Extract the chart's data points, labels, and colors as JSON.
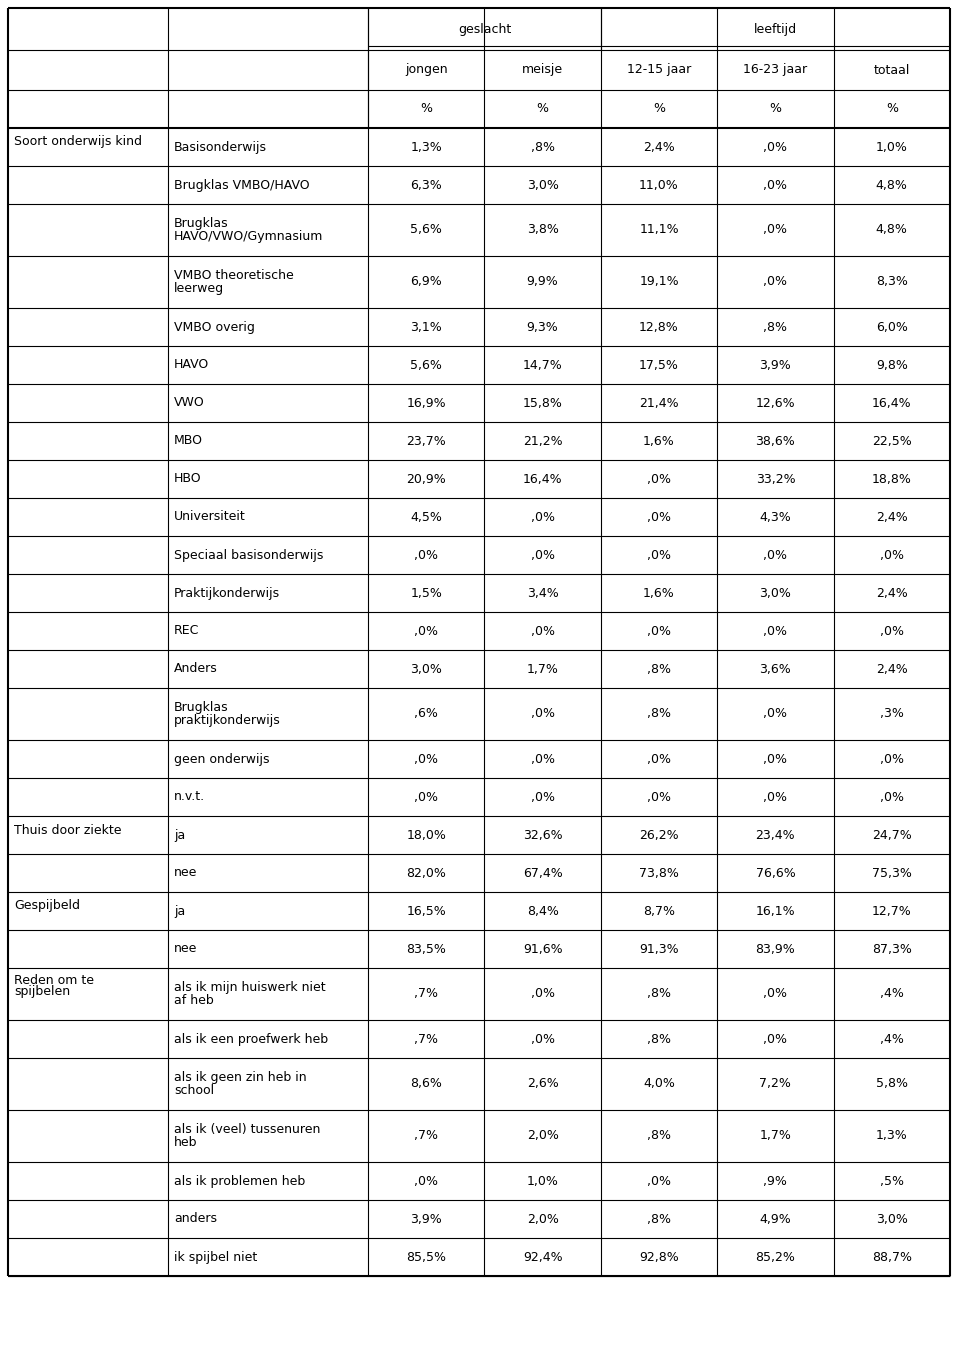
{
  "header_group1": "geslacht",
  "header_group2": "leeftijd",
  "col_headers": [
    "jongen",
    "meisje",
    "12-15 jaar",
    "16-23 jaar",
    "totaal"
  ],
  "sections": [
    {
      "section_label": "Soort onderwijs kind",
      "rows": [
        {
          "label": "Basisonderwijs",
          "values": [
            "1,3%",
            ",8%",
            "2,4%",
            ",0%",
            "1,0%"
          ],
          "nlines": 1
        },
        {
          "label": "Brugklas VMBO/HAVO",
          "values": [
            "6,3%",
            "3,0%",
            "11,0%",
            ",0%",
            "4,8%"
          ],
          "nlines": 1
        },
        {
          "label": "Brugklas\nHAVO/VWO/Gymnasium",
          "values": [
            "5,6%",
            "3,8%",
            "11,1%",
            ",0%",
            "4,8%"
          ],
          "nlines": 2
        },
        {
          "label": "VMBO theoretische\nleerweg",
          "values": [
            "6,9%",
            "9,9%",
            "19,1%",
            ",0%",
            "8,3%"
          ],
          "nlines": 2
        },
        {
          "label": "VMBO overig",
          "values": [
            "3,1%",
            "9,3%",
            "12,8%",
            ",8%",
            "6,0%"
          ],
          "nlines": 1
        },
        {
          "label": "HAVO",
          "values": [
            "5,6%",
            "14,7%",
            "17,5%",
            "3,9%",
            "9,8%"
          ],
          "nlines": 1
        },
        {
          "label": "VWO",
          "values": [
            "16,9%",
            "15,8%",
            "21,4%",
            "12,6%",
            "16,4%"
          ],
          "nlines": 1
        },
        {
          "label": "MBO",
          "values": [
            "23,7%",
            "21,2%",
            "1,6%",
            "38,6%",
            "22,5%"
          ],
          "nlines": 1
        },
        {
          "label": "HBO",
          "values": [
            "20,9%",
            "16,4%",
            ",0%",
            "33,2%",
            "18,8%"
          ],
          "nlines": 1
        },
        {
          "label": "Universiteit",
          "values": [
            "4,5%",
            ",0%",
            ",0%",
            "4,3%",
            "2,4%"
          ],
          "nlines": 1
        },
        {
          "label": "Speciaal basisonderwijs",
          "values": [
            ",0%",
            ",0%",
            ",0%",
            ",0%",
            ",0%"
          ],
          "nlines": 1
        },
        {
          "label": "Praktijkonderwijs",
          "values": [
            "1,5%",
            "3,4%",
            "1,6%",
            "3,0%",
            "2,4%"
          ],
          "nlines": 1
        },
        {
          "label": "REC",
          "values": [
            ",0%",
            ",0%",
            ",0%",
            ",0%",
            ",0%"
          ],
          "nlines": 1
        },
        {
          "label": "Anders",
          "values": [
            "3,0%",
            "1,7%",
            ",8%",
            "3,6%",
            "2,4%"
          ],
          "nlines": 1
        },
        {
          "label": "Brugklas\npraktijkonderwijs",
          "values": [
            ",6%",
            ",0%",
            ",8%",
            ",0%",
            ",3%"
          ],
          "nlines": 2
        },
        {
          "label": "geen onderwijs",
          "values": [
            ",0%",
            ",0%",
            ",0%",
            ",0%",
            ",0%"
          ],
          "nlines": 1
        },
        {
          "label": "n.v.t.",
          "values": [
            ",0%",
            ",0%",
            ",0%",
            ",0%",
            ",0%"
          ],
          "nlines": 1
        }
      ]
    },
    {
      "section_label": "Thuis door ziekte",
      "rows": [
        {
          "label": "ja",
          "values": [
            "18,0%",
            "32,6%",
            "26,2%",
            "23,4%",
            "24,7%"
          ],
          "nlines": 1
        },
        {
          "label": "nee",
          "values": [
            "82,0%",
            "67,4%",
            "73,8%",
            "76,6%",
            "75,3%"
          ],
          "nlines": 1
        }
      ]
    },
    {
      "section_label": "Gespijbeld",
      "rows": [
        {
          "label": "ja",
          "values": [
            "16,5%",
            "8,4%",
            "8,7%",
            "16,1%",
            "12,7%"
          ],
          "nlines": 1
        },
        {
          "label": "nee",
          "values": [
            "83,5%",
            "91,6%",
            "91,3%",
            "83,9%",
            "87,3%"
          ],
          "nlines": 1
        }
      ]
    },
    {
      "section_label": "Reden om te\nspijbelen",
      "rows": [
        {
          "label": "als ik mijn huiswerk niet\naf heb",
          "values": [
            ",7%",
            ",0%",
            ",8%",
            ",0%",
            ",4%"
          ],
          "nlines": 2
        },
        {
          "label": "als ik een proefwerk heb",
          "values": [
            ",7%",
            ",0%",
            ",8%",
            ",0%",
            ",4%"
          ],
          "nlines": 1
        },
        {
          "label": "als ik geen zin heb in\nschool",
          "values": [
            "8,6%",
            "2,6%",
            "4,0%",
            "7,2%",
            "5,8%"
          ],
          "nlines": 2
        },
        {
          "label": "als ik (veel) tussenuren\nheb",
          "values": [
            ",7%",
            "2,0%",
            ",8%",
            "1,7%",
            "1,3%"
          ],
          "nlines": 2
        },
        {
          "label": "als ik problemen heb",
          "values": [
            ",0%",
            "1,0%",
            ",0%",
            ",9%",
            ",5%"
          ],
          "nlines": 1
        },
        {
          "label": "anders",
          "values": [
            "3,9%",
            "2,0%",
            ",8%",
            "4,9%",
            "3,0%"
          ],
          "nlines": 1
        },
        {
          "label": "ik spijbel niet",
          "values": [
            "85,5%",
            "92,4%",
            "92,8%",
            "85,2%",
            "88,7%"
          ],
          "nlines": 1
        }
      ]
    }
  ],
  "bg_color": "#ffffff",
  "text_color": "#000000",
  "line_color": "#000000",
  "font_size": 9.0
}
